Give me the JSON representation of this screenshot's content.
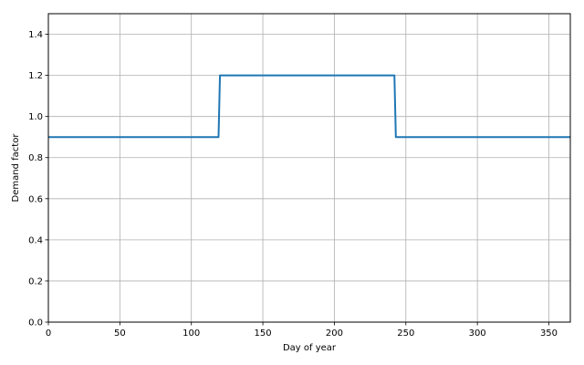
{
  "chart_data": {
    "type": "line",
    "title": "",
    "xlabel": "Day of year",
    "ylabel": "Demand factor",
    "xlim": [
      0,
      365
    ],
    "ylim": [
      0,
      1.5
    ],
    "grid": true,
    "x_ticks": [
      0,
      50,
      100,
      150,
      200,
      250,
      300,
      350
    ],
    "x_tick_labels": [
      "0",
      "50",
      "100",
      "150",
      "200",
      "250",
      "300",
      "350"
    ],
    "y_ticks": [
      0.0,
      0.2,
      0.4,
      0.6,
      0.8,
      1.0,
      1.2,
      1.4
    ],
    "y_tick_labels": [
      "0.0",
      "0.2",
      "0.4",
      "0.6",
      "0.8",
      "1.0",
      "1.2",
      "1.4"
    ],
    "series": [
      {
        "color": "#1f77b4",
        "points": [
          {
            "x": 0,
            "y": 0.9
          },
          {
            "x": 119,
            "y": 0.9
          },
          {
            "x": 120,
            "y": 1.2
          },
          {
            "x": 242,
            "y": 1.2
          },
          {
            "x": 243,
            "y": 0.9
          },
          {
            "x": 365,
            "y": 0.9
          }
        ]
      }
    ]
  }
}
